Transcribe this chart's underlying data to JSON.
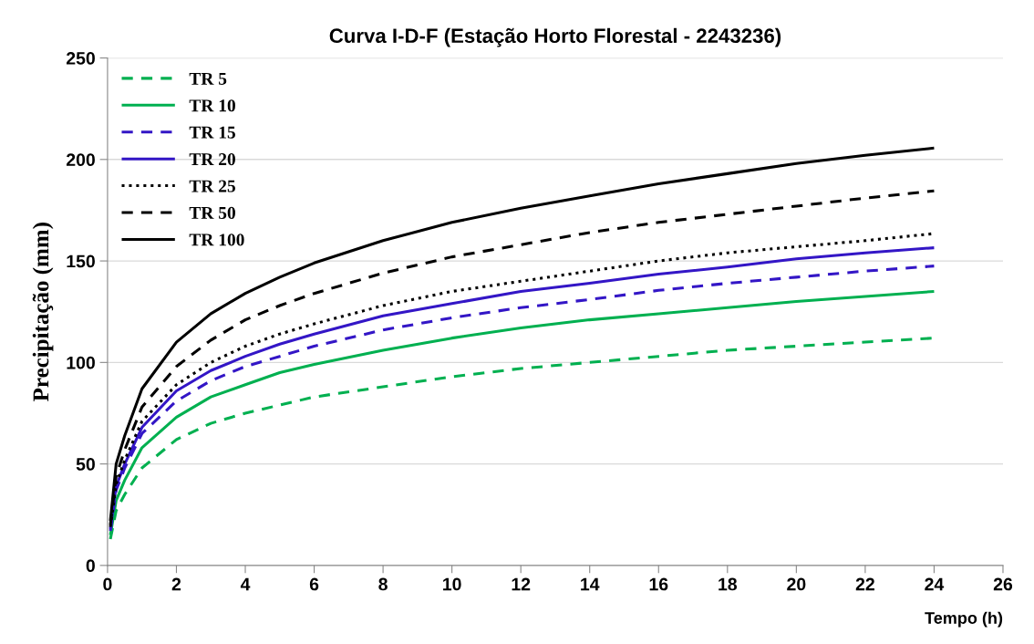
{
  "chart_data": {
    "type": "line",
    "title": "Curva I-D-F (Estação Horto Florestal - 2243236)",
    "xlabel": "Tempo (h)",
    "ylabel": "Precipitação (mm)",
    "x": [
      0.083,
      0.25,
      0.5,
      1,
      2,
      3,
      4,
      5,
      6,
      8,
      10,
      12,
      14,
      16,
      18,
      20,
      22,
      24
    ],
    "xlim": [
      0,
      26
    ],
    "xticks": [
      0,
      2,
      4,
      6,
      8,
      10,
      12,
      14,
      16,
      18,
      20,
      22,
      24,
      26
    ],
    "ylim": [
      0,
      250
    ],
    "yticks": [
      0,
      50,
      100,
      150,
      200,
      250
    ],
    "grid": "y",
    "legend": "top left",
    "marker": "none",
    "series": [
      {
        "name": "TR 5",
        "color": "#00b050",
        "line_style": "dashed",
        "values": [
          13,
          27,
          35,
          48,
          62,
          70,
          75,
          79,
          83,
          88,
          93,
          97,
          100,
          103,
          106,
          108,
          110,
          112
        ]
      },
      {
        "name": "TR 10",
        "color": "#00b050",
        "line_style": "solid",
        "values": [
          15,
          32,
          42,
          58,
          73,
          83,
          89,
          95,
          99,
          106,
          112,
          117,
          121,
          124,
          127,
          130,
          132.5,
          135
        ]
      },
      {
        "name": "TR 15",
        "color": "#3316c6",
        "line_style": "dashed",
        "values": [
          17,
          37,
          48,
          65,
          81,
          91,
          98,
          103,
          108,
          116,
          122,
          127,
          131,
          135.5,
          139,
          142,
          145,
          147.5
        ]
      },
      {
        "name": "TR 20",
        "color": "#3316c6",
        "line_style": "solid",
        "values": [
          18,
          39,
          50,
          68,
          86,
          96,
          103,
          109,
          114,
          123,
          129,
          135,
          139,
          143.5,
          147,
          151,
          154,
          156.5
        ]
      },
      {
        "name": "TR 25",
        "color": "#000000",
        "line_style": "dotted",
        "values": [
          19,
          40,
          52,
          71,
          89,
          100,
          108,
          114,
          119,
          128,
          135,
          140,
          145,
          150,
          154,
          157,
          160,
          163.5
        ]
      },
      {
        "name": "TR 50",
        "color": "#000000",
        "line_style": "dashed",
        "values": [
          20,
          44,
          57,
          78,
          98,
          111,
          121,
          128,
          134,
          144,
          152,
          158,
          164,
          169,
          173,
          177,
          181,
          184.5
        ]
      },
      {
        "name": "TR 100",
        "color": "#000000",
        "line_style": "solid",
        "values": [
          22,
          50,
          64,
          87,
          110,
          124,
          134,
          142,
          149,
          160,
          169,
          176,
          182,
          188,
          193,
          198,
          202,
          205.6
        ]
      }
    ]
  }
}
